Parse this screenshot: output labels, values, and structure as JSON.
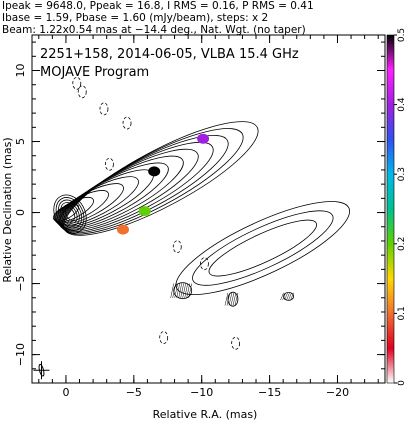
{
  "header": {
    "line1": "Ipeak = 9648.0, Ppeak = 16.8, I RMS = 0.16, P RMS = 0.41",
    "line2": "Ibase = 1.59, Pbase = 1.60 (mJy/beam), steps: x 2",
    "line3": "Beam: 1.22x0.54 mas at −14.4 deg., Nat. Wgt. (no taper)"
  },
  "chart_data": {
    "type": "contour",
    "title_line1": "2251+158, 2014-06-05, VLBA 15.4 GHz",
    "title_line2": "MOJAVE Program",
    "xlabel": "Relative R.A. (mas)",
    "ylabel": "Relative Declination (mas)",
    "xlim": [
      2.5,
      -23.5
    ],
    "ylim": [
      -12,
      12.5
    ],
    "xticks": [
      0,
      -5,
      -10,
      -15,
      -20
    ],
    "yticks": [
      10,
      5,
      0,
      -5,
      -10
    ],
    "xtick_labels": [
      "0",
      "−5",
      "−10",
      "−15",
      "−20"
    ],
    "ytick_labels": [
      "10",
      "5",
      "0",
      "−5",
      "−10"
    ],
    "colorbar": {
      "ticks": [
        0,
        0.1,
        0.2,
        0.3,
        0.4,
        0.5
      ],
      "tick_labels": [
        "0",
        "0.1",
        "0.2",
        "0.3",
        "0.4",
        "0.5"
      ],
      "colors": [
        "#ffffff",
        "#e00020",
        "#f07030",
        "#ffd800",
        "#60d000",
        "#00c090",
        "#00b8e8",
        "#3050f0",
        "#a020e0",
        "#ff20ff",
        "#000000"
      ]
    },
    "core": {
      "x": 0,
      "y": 0
    },
    "polarization_knots": [
      {
        "x": -4.2,
        "y": -1.2,
        "value": 0.08
      },
      {
        "x": -5.8,
        "y": 0.1,
        "value": 0.18
      },
      {
        "x": -10.1,
        "y": 5.2,
        "value": 0.42
      },
      {
        "x": -6.5,
        "y": 2.9,
        "value": 0.5
      }
    ],
    "contour_levels": [
      1.59,
      3.18,
      6.36,
      12.72,
      25.44,
      50.88,
      101.76,
      203.52,
      407.04,
      814.08,
      1628.16,
      3256.32,
      6512.64
    ],
    "contour_unit": "mJy/beam"
  }
}
